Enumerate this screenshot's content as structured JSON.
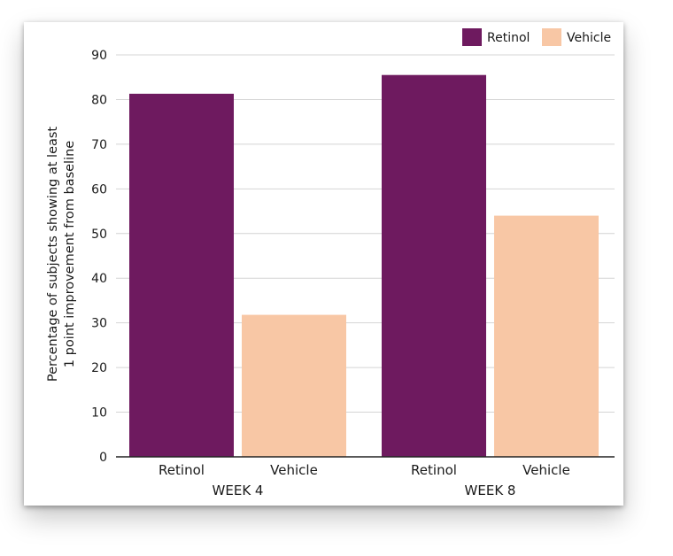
{
  "chart_data": {
    "type": "bar",
    "ylabel_lines": [
      "Percentage of subjects showing at least",
      "1 point improvement from baseline"
    ],
    "ylim": [
      0,
      90
    ],
    "yticks": [
      0,
      10,
      20,
      30,
      40,
      50,
      60,
      70,
      80,
      90
    ],
    "grid": true,
    "legend_position": "top-right",
    "groups": [
      "WEEK 4",
      "WEEK 8"
    ],
    "categories": [
      "Retinol",
      "Vehicle"
    ],
    "series": [
      {
        "name": "Retinol",
        "color": "#6e1a5f",
        "values": [
          81.3,
          85.5
        ]
      },
      {
        "name": "Vehicle",
        "color": "#f8c7a5",
        "values": [
          31.8,
          54.0
        ]
      }
    ]
  }
}
